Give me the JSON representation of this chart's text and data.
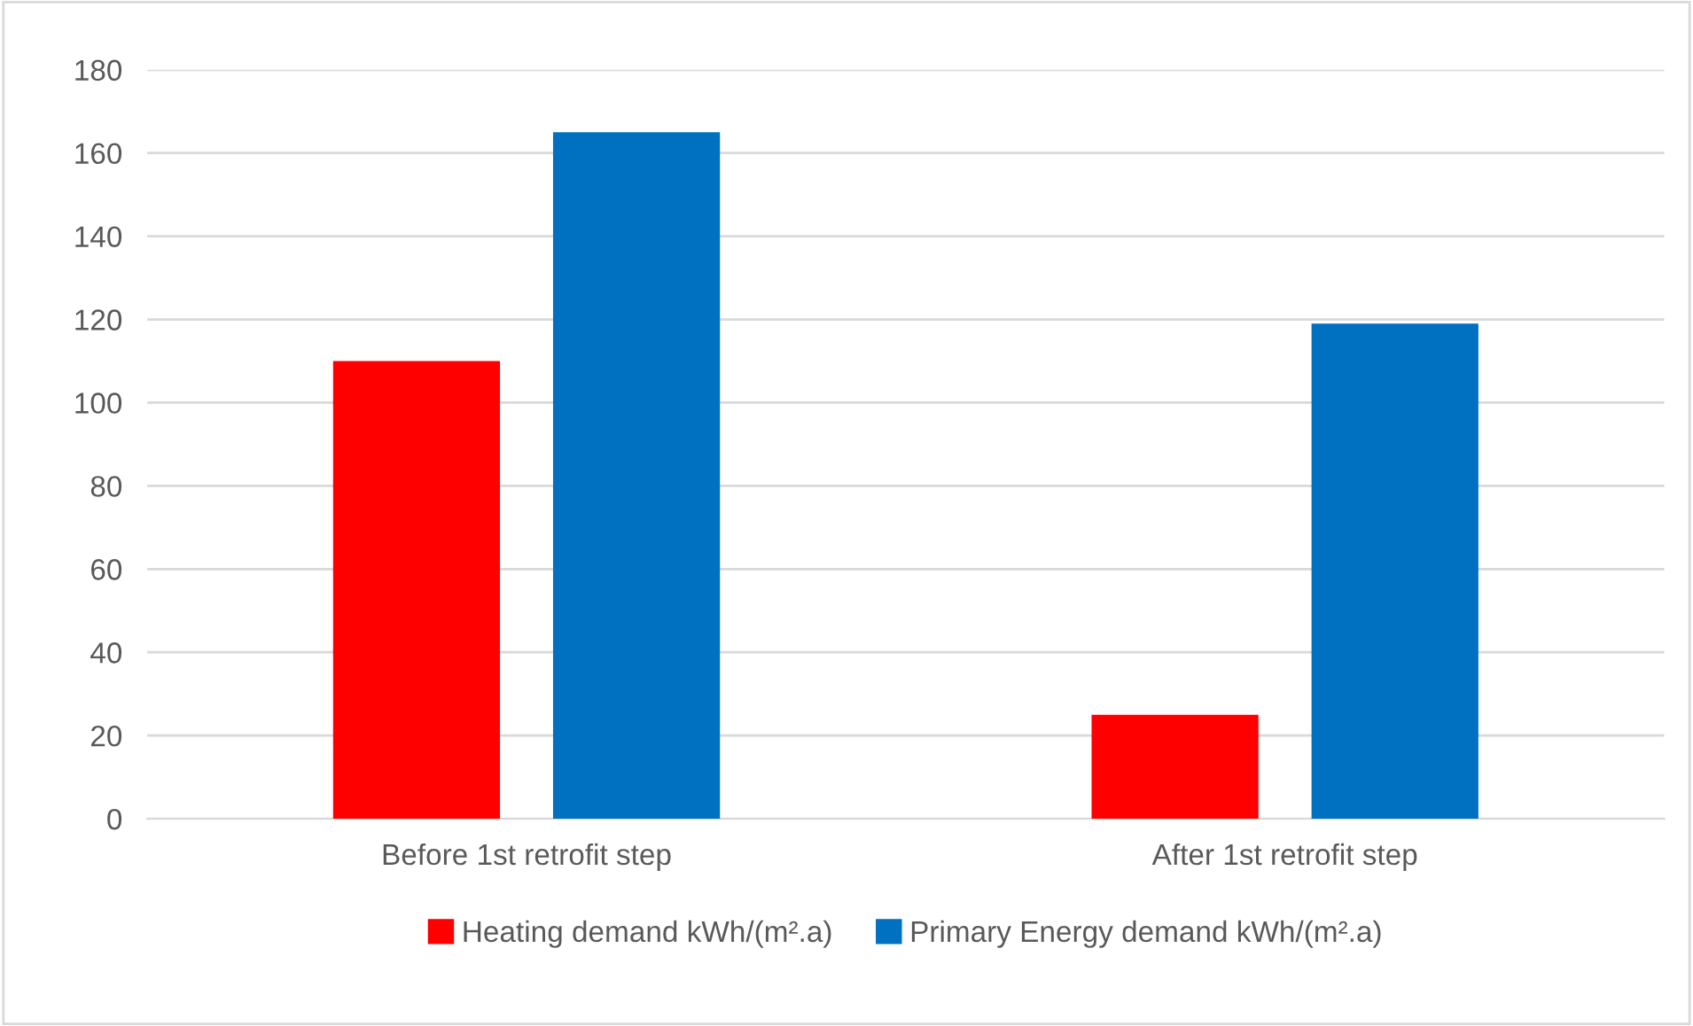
{
  "chart_data": {
    "type": "bar",
    "categories": [
      "Before 1st retrofit step",
      "After 1st retrofit step"
    ],
    "series": [
      {
        "name": "Heating demand kWh/(m².a)",
        "color": "#ff0000",
        "values": [
          110,
          25
        ]
      },
      {
        "name": "Primary Energy demand kWh/(m².a)",
        "color": "#0070c0",
        "values": [
          165,
          119
        ]
      }
    ],
    "ylim": [
      0,
      180
    ],
    "yticks": [
      0,
      20,
      40,
      60,
      80,
      100,
      120,
      140,
      160,
      180
    ],
    "grid": "y",
    "legend": "bottom"
  }
}
